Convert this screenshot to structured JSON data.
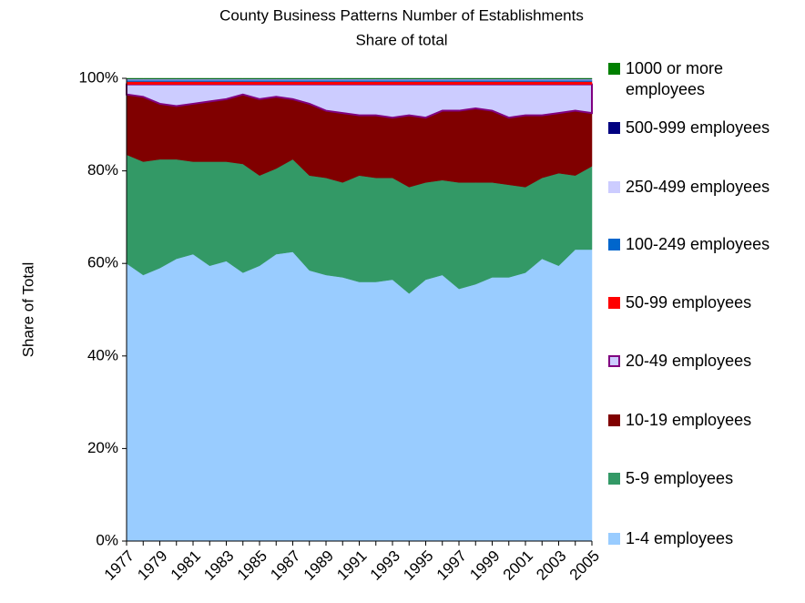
{
  "chart_data": {
    "type": "stacked-area",
    "title": "County Business Patterns Number of Establishments",
    "subtitle": "Share of total",
    "y_label": "Share of Total",
    "categories": [
      "1977",
      null,
      "1979",
      null,
      "1981",
      null,
      "1983",
      null,
      "1985",
      null,
      "1987",
      null,
      "1989",
      null,
      "1991",
      null,
      "1993",
      null,
      "1995",
      null,
      "1997",
      null,
      "1999",
      null,
      "2001",
      null,
      "2003",
      null,
      "2005"
    ],
    "ylim": [
      0,
      100
    ],
    "yticks": [
      {
        "value": 0,
        "label": "0%"
      },
      {
        "value": 20,
        "label": "20%"
      },
      {
        "value": 40,
        "label": "40%"
      },
      {
        "value": 60,
        "label": "60%"
      },
      {
        "value": 80,
        "label": "80%"
      },
      {
        "value": 100,
        "label": "100%"
      }
    ],
    "legend": "right",
    "series": [
      {
        "name": "1-4 employees",
        "color": "#99ccff",
        "values": [
          60,
          57.5,
          59,
          61,
          62,
          59.5,
          60.5,
          58,
          59.5,
          62,
          62.5,
          58.5,
          57.5,
          57,
          56,
          56,
          56.5,
          53.5,
          56.5,
          57.5,
          54.5,
          55.5,
          57,
          57,
          58,
          61,
          59.5,
          63,
          63
        ]
      },
      {
        "name": "5-9 employees",
        "color": "#339966",
        "values": [
          23.5,
          24.5,
          23.5,
          21.5,
          20,
          22.5,
          21.5,
          23.5,
          19.5,
          18.5,
          20,
          20.5,
          21,
          20.5,
          23,
          22.5,
          22,
          23,
          21,
          20.5,
          23,
          22,
          20.5,
          20,
          18.5,
          17.5,
          20,
          16,
          18
        ]
      },
      {
        "name": "10-19 employees",
        "color": "#800000",
        "values": [
          13,
          14,
          12,
          11.5,
          12.5,
          13,
          13.5,
          15,
          16.5,
          15.5,
          13,
          15.5,
          14.5,
          15,
          13,
          13.5,
          13,
          15.5,
          14,
          15,
          15.5,
          16,
          15.5,
          14.5,
          15.5,
          13.5,
          13,
          14,
          11.5
        ]
      },
      {
        "name": "20-49 employees",
        "color": "#ccccff",
        "edgecolor": "#800080",
        "values": [
          2.2,
          2.7,
          4.2,
          4.7,
          4.2,
          3.7,
          3.2,
          2.2,
          3.2,
          2.7,
          3.2,
          4.2,
          5.7,
          6.2,
          6.7,
          6.7,
          7.2,
          6.7,
          7.2,
          5.7,
          5.7,
          5.2,
          5.7,
          7.2,
          6.7,
          6.7,
          6.2,
          5.7,
          6.2
        ]
      },
      {
        "name": "50-99 employees",
        "color": "#ff0000",
        "values": [
          0.6,
          0.6,
          0.6,
          0.6,
          0.6,
          0.6,
          0.6,
          0.6,
          0.6,
          0.6,
          0.6,
          0.6,
          0.6,
          0.6,
          0.6,
          0.6,
          0.6,
          0.6,
          0.6,
          0.6,
          0.6,
          0.6,
          0.6,
          0.6,
          0.6,
          0.6,
          0.6,
          0.6,
          0.6
        ]
      },
      {
        "name": "100-249 employees",
        "color": "#0066cc",
        "values": [
          0.3,
          0.3,
          0.3,
          0.3,
          0.3,
          0.3,
          0.3,
          0.3,
          0.3,
          0.3,
          0.3,
          0.3,
          0.3,
          0.3,
          0.3,
          0.3,
          0.3,
          0.3,
          0.3,
          0.3,
          0.3,
          0.3,
          0.3,
          0.3,
          0.3,
          0.3,
          0.3,
          0.3,
          0.3
        ]
      },
      {
        "name": "250-499 employees",
        "color": "#ccccff",
        "values": [
          0.2,
          0.2,
          0.2,
          0.2,
          0.2,
          0.2,
          0.2,
          0.2,
          0.2,
          0.2,
          0.2,
          0.2,
          0.2,
          0.2,
          0.2,
          0.2,
          0.2,
          0.2,
          0.2,
          0.2,
          0.2,
          0.2,
          0.2,
          0.2,
          0.2,
          0.2,
          0.2,
          0.2,
          0.2
        ]
      },
      {
        "name": "500-999 employees",
        "color": "#000080",
        "values": [
          0.1,
          0.1,
          0.1,
          0.1,
          0.1,
          0.1,
          0.1,
          0.1,
          0.1,
          0.1,
          0.1,
          0.1,
          0.1,
          0.1,
          0.1,
          0.1,
          0.1,
          0.1,
          0.1,
          0.1,
          0.1,
          0.1,
          0.1,
          0.1,
          0.1,
          0.1,
          0.1,
          0.1,
          0.1
        ]
      },
      {
        "name": "1000 or more employees",
        "color": "#008000",
        "values": [
          0.1,
          0.1,
          0.1,
          0.1,
          0.1,
          0.1,
          0.1,
          0.1,
          0.1,
          0.1,
          0.1,
          0.1,
          0.1,
          0.1,
          0.1,
          0.1,
          0.1,
          0.1,
          0.1,
          0.1,
          0.1,
          0.1,
          0.1,
          0.1,
          0.1,
          0.1,
          0.1,
          0.1,
          0.1
        ]
      }
    ]
  }
}
